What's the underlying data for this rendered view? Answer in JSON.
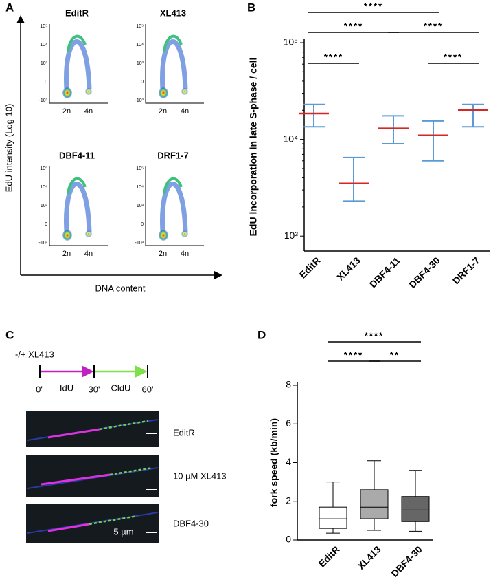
{
  "panels": {
    "A": {
      "letter": "A",
      "plots": [
        {
          "title": "EditR"
        },
        {
          "title": "XL413"
        },
        {
          "title": "DBF4-11"
        },
        {
          "title": "DRF1-7"
        }
      ],
      "yticks": [
        "10⁵",
        "10⁴",
        "10³",
        "0",
        "-10³"
      ],
      "xticks": [
        "2n",
        "4n"
      ],
      "ylabel": "EdU intensity (Log 10)",
      "xlabel": "DNA content"
    },
    "C": {
      "letter": "C",
      "treatment": "-/+ XL413",
      "pulses": [
        "IdU",
        "CldU"
      ],
      "times": [
        "0'",
        "30'",
        "60'"
      ],
      "images": [
        "EditR",
        "10 µM XL413",
        "DBF4-30"
      ],
      "scale": "5 µm"
    }
  },
  "chart_data": [
    {
      "type": "dot",
      "letter": "B",
      "ylabel": "EdU incorporation in late S-phase / cell",
      "categories": [
        "EditR",
        "XL413",
        "DBF4-11",
        "DBF4-30",
        "DRF1-7"
      ],
      "values": [
        18500,
        3500,
        13000,
        11000,
        20000
      ],
      "q1": [
        13500,
        2300,
        9000,
        6000,
        13500
      ],
      "q3": [
        23000,
        6500,
        17500,
        15500,
        23000
      ],
      "median_color": "#d62728",
      "iqr_color": "#5b9bd5",
      "log_scale": true,
      "ylim": [
        700,
        100000
      ],
      "yticks": [
        {
          "value": 1000,
          "label": "10³"
        },
        {
          "value": 10000,
          "label": "10⁴"
        },
        {
          "value": 100000,
          "label": "10⁵"
        }
      ],
      "brackets": [
        {
          "from": 0,
          "to": 3,
          "label": "****"
        },
        {
          "from": 0,
          "to": 2,
          "label": "****"
        },
        {
          "from": 2,
          "to": 4,
          "label": "****"
        },
        {
          "from": 0,
          "to": 1,
          "label": "****"
        },
        {
          "from": 3,
          "to": 4,
          "label": "****"
        }
      ]
    },
    {
      "type": "box",
      "letter": "D",
      "ylabel": "fork speed (kb/min)",
      "categories": [
        "EditR",
        "XL413",
        "DBF4-30"
      ],
      "min": [
        0.35,
        0.5,
        0.45
      ],
      "q1": [
        0.6,
        1.1,
        0.95
      ],
      "median": [
        1.1,
        1.7,
        1.55
      ],
      "q3": [
        1.7,
        2.6,
        2.25
      ],
      "max": [
        3.0,
        4.1,
        3.6
      ],
      "colors": [
        "#ffffff",
        "#aaaaaa",
        "#666666"
      ],
      "ylim": [
        0,
        8
      ],
      "yticks": [
        0,
        2,
        4,
        6,
        8
      ],
      "brackets": [
        {
          "from": 0,
          "to": 2,
          "label": "****"
        },
        {
          "from": 0,
          "to": 1,
          "label": "****"
        },
        {
          "from": 1,
          "to": 2,
          "label": "**"
        }
      ]
    }
  ]
}
